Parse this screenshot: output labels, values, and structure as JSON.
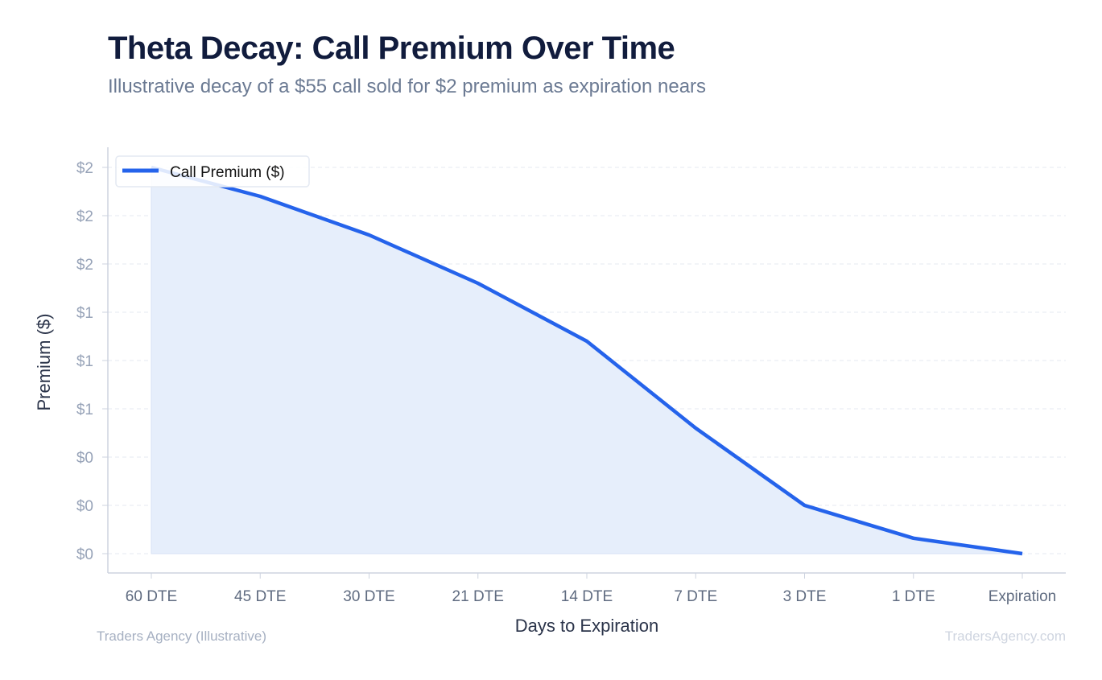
{
  "title": "Theta Decay: Call Premium Over Time",
  "subtitle": "Illustrative decay of a $55 call sold for $2 premium as expiration nears",
  "footer": {
    "left": "Traders Agency (Illustrative)",
    "right": "TradersAgency.com"
  },
  "colors": {
    "line": "#2563eb",
    "fill": "#e6eefb",
    "grid": "#e4e9f2",
    "axis": "#cdd3df"
  },
  "chart_data": {
    "type": "area",
    "xlabel": "Days to Expiration",
    "ylabel": "Premium ($)",
    "categories": [
      "60 DTE",
      "45 DTE",
      "30 DTE",
      "21 DTE",
      "14 DTE",
      "7 DTE",
      "3 DTE",
      "1 DTE",
      "Expiration"
    ],
    "series": [
      {
        "name": "Call Premium ($)",
        "values": [
          2.0,
          1.85,
          1.65,
          1.4,
          1.1,
          0.65,
          0.25,
          0.08,
          0.0
        ]
      }
    ],
    "ylim": [
      0,
      2.0
    ],
    "yticks": [
      0,
      0.25,
      0.5,
      0.75,
      1.0,
      1.25,
      1.5,
      1.75,
      2.0
    ],
    "ytick_labels": [
      "$0",
      "$0",
      "$0",
      "$1",
      "$1",
      "$1",
      "$2",
      "$2",
      "$2"
    ],
    "grid": true,
    "legend": "top-left"
  }
}
